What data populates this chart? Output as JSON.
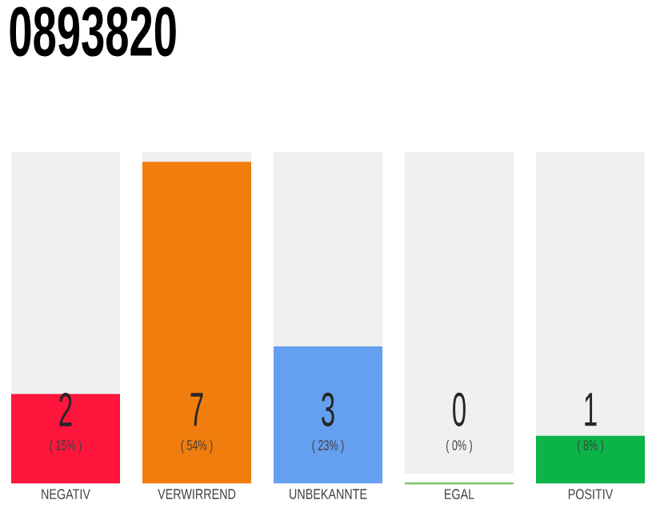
{
  "chart_data": {
    "type": "bar",
    "title": "0893820",
    "categories": [
      "NEGATIV",
      "VERWIRREND",
      "UNBEKANNTE",
      "EGAL",
      "POSITIV"
    ],
    "values": [
      15,
      54,
      23,
      0,
      8
    ],
    "colors": [
      "#fe153c",
      "#f07d0d",
      "#659ff0",
      "#7cc46a",
      "#0bb446"
    ],
    "value_labels": [
      "( 15% )",
      "( 54% )",
      "( 23% )",
      "( 0% )",
      "( 8% )"
    ],
    "annotations": [
      "2",
      "7",
      "3",
      "0",
      "1"
    ],
    "tick_labels": "x"
  }
}
